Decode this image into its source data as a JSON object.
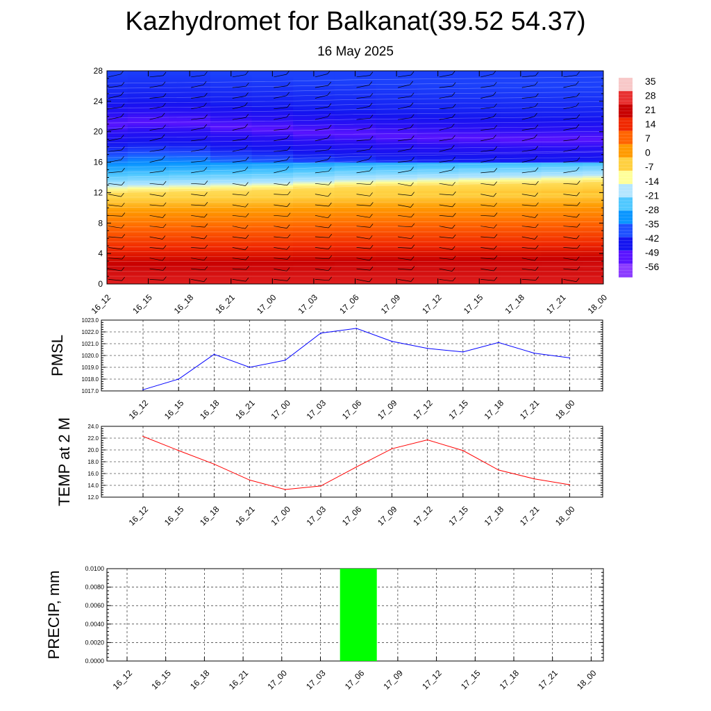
{
  "title": "Kazhydromet for Balkanat(39.52 54.37)",
  "subtitle": "16 May 2025",
  "time_labels": [
    "16_12",
    "16_15",
    "16_18",
    "16_21",
    "17_00",
    "17_03",
    "17_06",
    "17_09",
    "17_12",
    "17_15",
    "17_18",
    "17_21",
    "18_00"
  ],
  "chart_data": [
    {
      "type": "heatmap",
      "name": "temperature-wind cross section",
      "x": [
        "16_12",
        "16_15",
        "16_18",
        "16_21",
        "17_00",
        "17_03",
        "17_06",
        "17_09",
        "17_12",
        "17_15",
        "17_18",
        "17_21",
        "18_00"
      ],
      "ylim": [
        0,
        28
      ],
      "yticks": [
        0,
        4,
        8,
        12,
        16,
        20,
        24,
        28
      ],
      "colorbar": {
        "labels": [
          35,
          28,
          21,
          14,
          7,
          0,
          -7,
          -14,
          -21,
          -28,
          -35,
          -42,
          -49,
          -56
        ],
        "colors": [
          "#f8c8c8",
          "#e83030",
          "#c80000",
          "#f02800",
          "#ff6400",
          "#ff9a00",
          "#ffd040",
          "#ffff9a",
          "#b4e6ff",
          "#50c8ff",
          "#0a96ff",
          "#1e50ff",
          "#1414f0",
          "#5a14ff",
          "#8c3cff"
        ]
      },
      "contour": {
        "level_heights": [
          0,
          2,
          4,
          6,
          8,
          10,
          12,
          13,
          14,
          16,
          18,
          20,
          21,
          22,
          24,
          28
        ],
        "level_values": [
          30,
          26,
          20,
          14,
          8,
          3,
          -2,
          -14,
          -20,
          -32,
          -44,
          -52,
          -56,
          -53,
          -45,
          -40
        ],
        "freezing_level": [
          12.2,
          12.3,
          12.4,
          12.5,
          12.6,
          12.8,
          13.0,
          13.1,
          13.2,
          13.3,
          13.4,
          13.5,
          13.6
        ],
        "cold_core_level": [
          21.2,
          21.5,
          21.4,
          20.8,
          20.5,
          20.0,
          19.8,
          19.5,
          19.3,
          19.2,
          19.0,
          19.0,
          19.0
        ]
      }
    },
    {
      "type": "line",
      "ylabel": "PMSL",
      "ylim": [
        1017.0,
        1023.0
      ],
      "yticks": [
        "1017.0",
        "1018.0",
        "1019.0",
        "1020.0",
        "1021.0",
        "1022.0",
        "1023.0"
      ],
      "x": [
        "16_12",
        "16_15",
        "16_18",
        "16_21",
        "17_00",
        "17_03",
        "17_06",
        "17_09",
        "17_12",
        "17_15",
        "17_18",
        "17_21",
        "18_00"
      ],
      "values": [
        1017.1,
        1018.0,
        1020.1,
        1019.0,
        1019.6,
        1021.9,
        1022.3,
        1021.2,
        1020.6,
        1020.3,
        1021.1,
        1020.2,
        1019.8
      ],
      "color": "#0000ff"
    },
    {
      "type": "line",
      "ylabel": "TEMP at 2 M",
      "ylim": [
        12.0,
        24.0
      ],
      "yticks": [
        "12.0",
        "14.0",
        "16.0",
        "18.0",
        "20.0",
        "22.0",
        "24.0"
      ],
      "x": [
        "16_12",
        "16_15",
        "16_18",
        "16_21",
        "17_00",
        "17_03",
        "17_06",
        "17_09",
        "17_12",
        "17_15",
        "17_18",
        "17_21",
        "18_00"
      ],
      "values": [
        22.3,
        19.9,
        17.6,
        14.9,
        13.3,
        13.9,
        17.1,
        20.2,
        21.7,
        19.9,
        16.6,
        15.1,
        14.1
      ],
      "color": "#ff0000"
    },
    {
      "type": "bar",
      "ylabel": "PRECIP, mm",
      "ylim": [
        0,
        0.01
      ],
      "yticks": [
        "0.0000",
        "0.0020",
        "0.0040",
        "0.0060",
        "0.0080",
        "0.0100"
      ],
      "x": [
        "16_12",
        "16_15",
        "16_18",
        "16_21",
        "17_00",
        "17_03",
        "17_06",
        "17_09",
        "17_12",
        "17_15",
        "17_18",
        "17_21",
        "18_00"
      ],
      "values": [
        0,
        0,
        0,
        0,
        0,
        0,
        0.01,
        0,
        0,
        0,
        0,
        0,
        0
      ],
      "color": "#00ff00"
    }
  ]
}
